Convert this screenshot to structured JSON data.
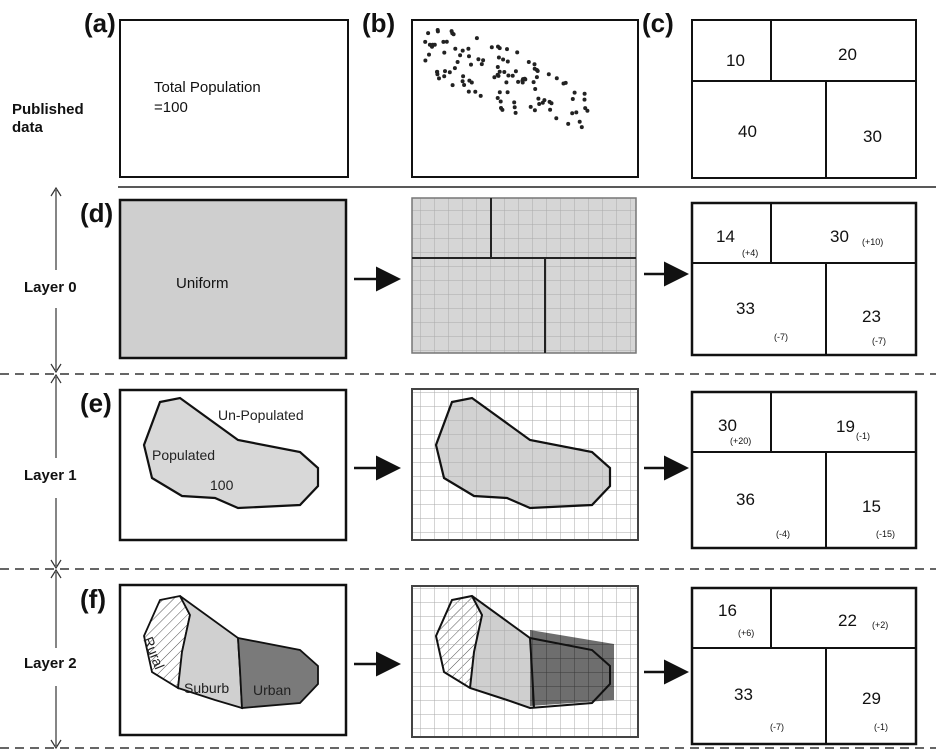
{
  "panels": {
    "a": "(a)",
    "b": "(b)",
    "c": "(c)",
    "d": "(d)",
    "e": "(e)",
    "f": "(f)"
  },
  "rows": {
    "published": [
      "Published",
      "data"
    ],
    "layer0": "Layer 0",
    "layer1": "Layer 1",
    "layer2": "Layer  2"
  },
  "panel_a": {
    "line1": "Total Population",
    "line2": "=100"
  },
  "panel_c": {
    "tl": "10",
    "tr": "20",
    "bl": "40",
    "br": "30"
  },
  "panel_d": {
    "label": "Uniform"
  },
  "panel_e": {
    "outside": "Un-Populated",
    "inside": "Populated",
    "value": "100"
  },
  "panel_f": {
    "rural": "Rural",
    "suburb": "Suburb",
    "urban": "Urban"
  },
  "results": {
    "layer0": {
      "tl": "14",
      "tl_d": "(+4)",
      "tr": "30",
      "tr_d": "(+10)",
      "bl": "33",
      "bl_d": "(-7)",
      "br": "23",
      "br_d": "(-7)"
    },
    "layer1": {
      "tl": "30",
      "tl_d": "(+20)",
      "tr": "19",
      "tr_d": "(-1)",
      "bl": "36",
      "bl_d": "(-4)",
      "br": "15",
      "br_d": "(-15)"
    },
    "layer2": {
      "tl": "16",
      "tl_d": "(+6)",
      "tr": "22",
      "tr_d": "(+2)",
      "bl": "33",
      "bl_d": "(-7)",
      "br": "29",
      "br_d": "(-1)"
    }
  },
  "colors": {
    "fill_gray": "#cfcfcf",
    "urban": "#7a7a7a",
    "suburb": "#d0d0d0",
    "grid": "#b0b0b0"
  }
}
